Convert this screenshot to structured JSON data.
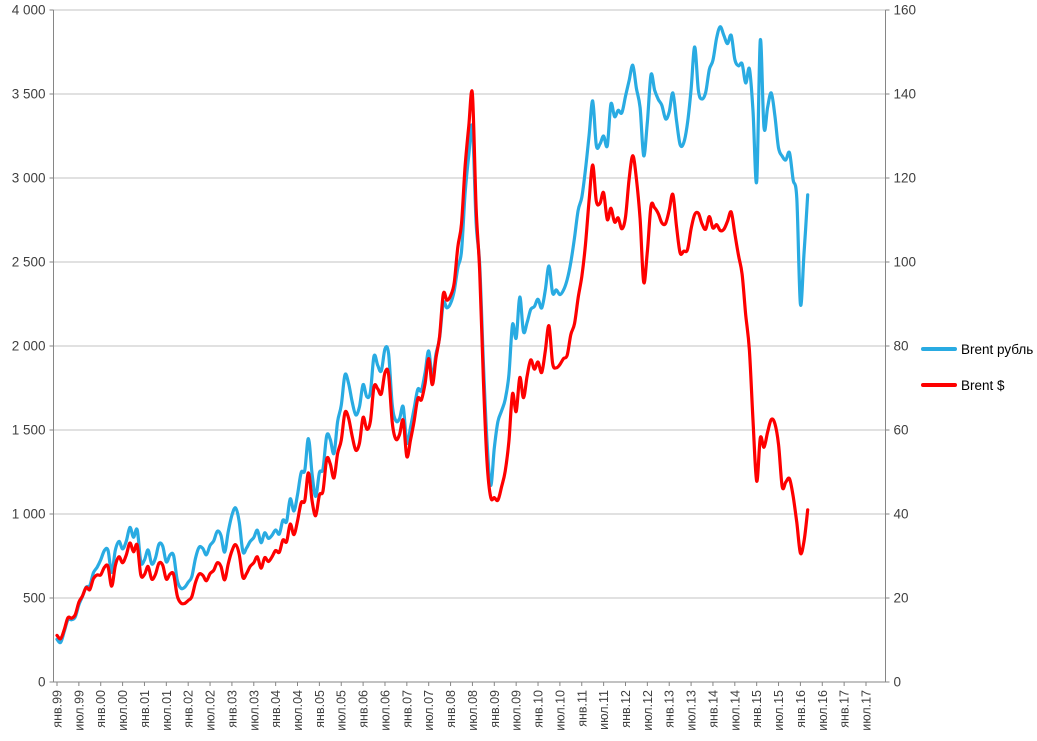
{
  "page": {
    "background": "#ffffff"
  },
  "colors": {
    "grid": "#c3c3c3",
    "axis": "#868686",
    "tick_text": "#3f3f3f",
    "series_rub": "#29abe2",
    "series_usd": "#fe0000"
  },
  "legend": {
    "items": [
      {
        "label": "Brent рубль",
        "color": "#29abe2"
      },
      {
        "label": "Brent $",
        "color": "#fe0000"
      }
    ]
  },
  "chart_data": {
    "type": "line",
    "title": "",
    "grid": true,
    "legend_position": "right-middle",
    "x_axis": {
      "start_label": "янв.99",
      "end_label": "июл.17",
      "months_total": 223,
      "tick_interval_months": 6,
      "tick_labels": [
        "янв.99",
        "июл.99",
        "янв.00",
        "июл.00",
        "янв.01",
        "июл.01",
        "янв.02",
        "июл.02",
        "янв.03",
        "июл.03",
        "янв.04",
        "июл.04",
        "янв.05",
        "июл.05",
        "янв.06",
        "июл.06",
        "янв.07",
        "июл.07",
        "янв.08",
        "июл.08",
        "янв.09",
        "июл.09",
        "янв.10",
        "июл.10",
        "янв.11",
        "июл.11",
        "янв.12",
        "июл.12",
        "янв.13",
        "июл.13",
        "янв.14",
        "июл.14",
        "янв.15",
        "июл.15",
        "янв.16",
        "июл.16",
        "янв.17",
        "июл.17"
      ]
    },
    "left_axis": {
      "min": 0,
      "max": 4000,
      "step": 500,
      "tick_labels": [
        "0",
        "500",
        "1 000",
        "1 500",
        "2 000",
        "2 500",
        "3 000",
        "3 500",
        "4 000"
      ]
    },
    "right_axis": {
      "min": 0,
      "max": 160,
      "step": 20,
      "tick_labels": [
        "0",
        "20",
        "40",
        "60",
        "80",
        "100",
        "120",
        "140",
        "160"
      ]
    },
    "series": [
      {
        "name": "Brent рубль",
        "axis": "left",
        "color": "#29abe2",
        "start_month": "1999-01",
        "values": [
          254,
          236,
          302,
          370,
          371,
          387,
          460,
          510,
          565,
          574,
          650,
          683,
          727,
          783,
          784,
          652,
          784,
          837,
          792,
          837,
          920,
          862,
          906,
          714,
          727,
          786,
          703,
          737,
          821,
          809,
          715,
          756,
          753,
          605,
          558,
          563,
          594,
          627,
          737,
          802,
          795,
          757,
          813,
          840,
          897,
          872,
          773,
          897,
          992,
          1036,
          955,
          777,
          797,
          836,
          860,
          903,
          829,
          888,
          855,
          873,
          905,
          881,
          963,
          955,
          1090,
          1018,
          1114,
          1247,
          1261,
          1449,
          1237,
          1105,
          1246,
          1269,
          1466,
          1443,
          1361,
          1550,
          1645,
          1827,
          1780,
          1667,
          1590,
          1639,
          1770,
          1698,
          1726,
          1940,
          1885,
          1852,
          1983,
          1954,
          1647,
          1555,
          1567,
          1638,
          1423,
          1515,
          1627,
          1742,
          1734,
          1841,
          1971,
          1812,
          1953,
          2049,
          2255,
          2227,
          2254,
          2328,
          2468,
          2564,
          2910,
          3138,
          3300,
          2735,
          2482,
          1898,
          1433,
          1170,
          1392,
          1550,
          1614,
          1682,
          1828,
          2127,
          2048,
          2291,
          2085,
          2140,
          2217,
          2235,
          2278,
          2226,
          2332,
          2476,
          2315,
          2334,
          2306,
          2333,
          2396,
          2498,
          2644,
          2806,
          2885,
          3047,
          3249,
          3459,
          3195,
          3203,
          3250,
          3193,
          3440,
          3365,
          3403,
          3388,
          3487,
          3579,
          3671,
          3534,
          3419,
          3132,
          3335,
          3614,
          3523,
          3468,
          3432,
          3352,
          3392,
          3506,
          3342,
          3199,
          3211,
          3324,
          3528,
          3780,
          3520,
          3470,
          3510,
          3645,
          3700,
          3833,
          3900,
          3848,
          3800,
          3849,
          3706,
          3668,
          3680,
          3566,
          3650,
          3400,
          2980,
          3820,
          3300,
          3420,
          3506,
          3370,
          3180,
          3130,
          3107,
          3150,
          2990,
          2880,
          2250,
          2550,
          2900
        ]
      },
      {
        "name": "Brent $",
        "axis": "right",
        "color": "#fe0000",
        "start_month": "1999-01",
        "values": [
          11.1,
          10.3,
          12.5,
          15.3,
          15.2,
          16.0,
          19.0,
          20.5,
          22.5,
          22.0,
          24.6,
          25.5,
          25.5,
          27.3,
          27.5,
          22.8,
          27.7,
          29.8,
          28.4,
          30.2,
          33.1,
          31.0,
          32.6,
          25.5,
          25.6,
          27.5,
          24.5,
          25.6,
          28.3,
          27.8,
          24.5,
          25.7,
          25.6,
          20.5,
          18.8,
          18.7,
          19.4,
          20.3,
          23.7,
          25.7,
          25.4,
          24.1,
          25.8,
          26.6,
          28.4,
          27.5,
          24.3,
          28.2,
          31.2,
          32.7,
          30.4,
          24.9,
          25.8,
          27.5,
          28.4,
          29.8,
          27.1,
          29.6,
          28.7,
          29.8,
          31.3,
          30.9,
          33.8,
          33.4,
          37.6,
          35.1,
          38.3,
          42.7,
          43.2,
          49.8,
          43.1,
          39.6,
          44.5,
          45.5,
          53.1,
          51.9,
          48.6,
          54.4,
          57.5,
          64.1,
          62.9,
          58.5,
          55.2,
          56.9,
          63.0,
          60.2,
          62.1,
          70.3,
          69.8,
          68.6,
          73.7,
          73.2,
          61.7,
          57.8,
          58.9,
          62.3,
          53.7,
          57.6,
          62.1,
          67.5,
          67.2,
          71.1,
          77.0,
          70.8,
          77.2,
          82.3,
          92.4,
          90.9,
          92.0,
          95.0,
          103.7,
          109.1,
          122.8,
          132.4,
          140.0,
          113.0,
          97.7,
          71.9,
          52.5,
          44.0,
          43.9,
          43.3,
          46.5,
          50.2,
          57.3,
          68.6,
          64.4,
          72.5,
          67.7,
          72.8,
          76.7,
          74.5,
          76.2,
          73.7,
          78.8,
          84.8,
          75.9,
          74.8,
          75.6,
          77.0,
          77.8,
          82.7,
          85.3,
          91.4,
          96.5,
          104.0,
          114.4,
          123.1,
          114.5,
          114.0,
          116.5,
          110.1,
          112.8,
          109.5,
          110.5,
          107.9,
          110.7,
          119.7,
          125.3,
          119.8,
          110.3,
          95.2,
          102.6,
          113.3,
          112.9,
          111.5,
          109.3,
          109.2,
          112.3,
          116.1,
          108.5,
          102.2,
          102.6,
          102.9,
          107.9,
          111.3,
          111.6,
          109.1,
          107.8,
          110.8,
          108.1,
          108.9,
          107.5,
          107.8,
          109.7,
          111.9,
          106.8,
          101.6,
          97.1,
          87.4,
          79.0,
          62.3,
          47.8,
          58.1,
          55.9,
          59.5,
          62.5,
          61.5,
          56.6,
          46.5,
          47.6,
          48.4,
          44.3,
          38.0,
          30.7,
          33.5,
          41.0
        ]
      }
    ]
  }
}
